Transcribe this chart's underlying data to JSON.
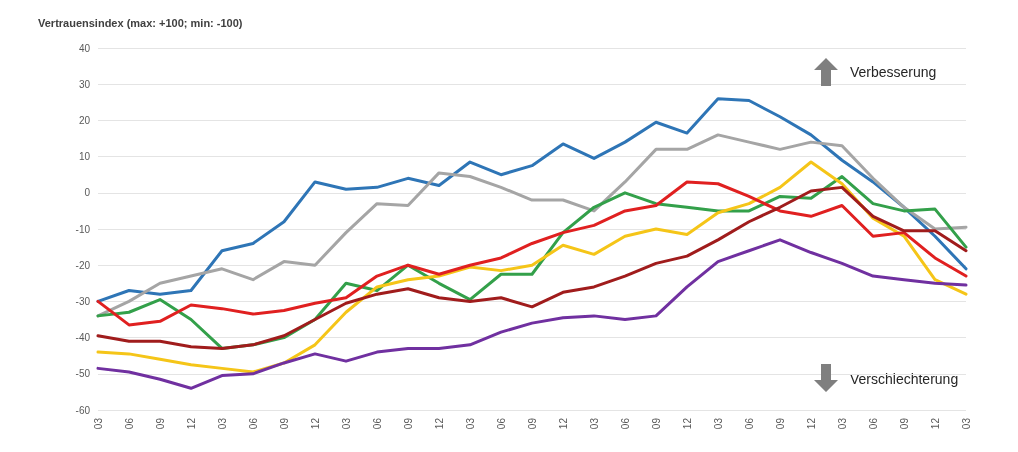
{
  "chart_data": {
    "type": "line",
    "ylabel": "Vertrauensindex (max: +100; min: -100)",
    "categories": [
      "03",
      "06",
      "09",
      "12",
      "03",
      "06",
      "09",
      "12",
      "03",
      "06",
      "09",
      "12",
      "03",
      "06",
      "09",
      "12",
      "03",
      "06",
      "09",
      "12",
      "03",
      "06",
      "09",
      "12",
      "03",
      "06",
      "09",
      "12",
      "03"
    ],
    "series": [
      {
        "color": "#2e75b6",
        "values": [
          -30,
          -27,
          -28,
          -27,
          -16,
          -14,
          -8,
          3,
          1,
          1.5,
          4,
          2,
          8.5,
          5,
          7.5,
          13.5,
          9.5,
          14,
          19.5,
          16.5,
          26,
          25.5,
          21,
          16,
          9,
          3,
          -4,
          -12,
          -21
        ]
      },
      {
        "color": "#a5a5a5",
        "values": [
          -34,
          -30,
          -25,
          -23,
          -21,
          -24,
          -19,
          -20,
          -11,
          -3,
          -3.5,
          5.5,
          4.5,
          1.5,
          -2,
          -2,
          -5,
          3,
          12,
          12,
          16,
          14,
          12,
          14,
          13,
          4,
          -4,
          -10,
          -9.5
        ]
      },
      {
        "color": "#33a04a",
        "values": [
          -34,
          -33,
          -29.5,
          -35,
          -43,
          -42,
          -40,
          -35,
          -25,
          -27,
          -20,
          -25,
          -29.5,
          -22.5,
          -22.5,
          -11,
          -4,
          0,
          -3,
          -4,
          -5,
          -5,
          -1,
          -1.5,
          4.5,
          -3,
          -5,
          -4.5,
          -15
        ]
      },
      {
        "color": "#f5c518",
        "values": [
          -44,
          -44.5,
          -46,
          -47.5,
          -48.5,
          -49.5,
          -47,
          -42,
          -33,
          -26,
          -24,
          -23,
          -20.5,
          -21.5,
          -20,
          -14.5,
          -17,
          -12,
          -10,
          -11.5,
          -5.5,
          -3,
          1.5,
          8.5,
          2.5,
          -7,
          -12,
          -24,
          -28
        ]
      },
      {
        "color": "#e02020",
        "values": [
          -30,
          -36.5,
          -35.5,
          -31,
          -32,
          -33.5,
          -32.5,
          -30.5,
          -29,
          -23,
          -20,
          -22.5,
          -20,
          -18,
          -14,
          -11,
          -9,
          -5,
          -3.5,
          3,
          2.5,
          -1,
          -5,
          -6.5,
          -3.5,
          -12,
          -11,
          -18,
          -23
        ]
      },
      {
        "color": "#a01c1c",
        "values": [
          -39.5,
          -41,
          -41,
          -42.5,
          -43,
          -42,
          -39.5,
          -35,
          -30.5,
          -28,
          -26.5,
          -29,
          -30,
          -29,
          -31.5,
          -27.5,
          -26,
          -23,
          -19.5,
          -17.5,
          -13,
          -8,
          -4,
          0.5,
          1.5,
          -6.5,
          -10.5,
          -10.5,
          -16
        ]
      },
      {
        "color": "#7030a0",
        "values": [
          -48.5,
          -49.5,
          -51.5,
          -54,
          -50.5,
          -50,
          -47,
          -44.5,
          -46.5,
          -44,
          -43,
          -43,
          -42,
          -38.5,
          -36,
          -34.5,
          -34,
          -35,
          -34,
          -26,
          -19,
          -16,
          -13,
          -16.5,
          -19.5,
          -23,
          -24,
          -25,
          -25.5
        ]
      }
    ],
    "ylim": [
      -60,
      40
    ],
    "yticks": [
      -60,
      -50,
      -40,
      -30,
      -20,
      -10,
      0,
      10,
      20,
      30,
      40
    ],
    "grid": "y",
    "marker": "none",
    "line_style": "solid",
    "annotations": [
      "Verbesserung",
      "Verschlechterung"
    ]
  }
}
